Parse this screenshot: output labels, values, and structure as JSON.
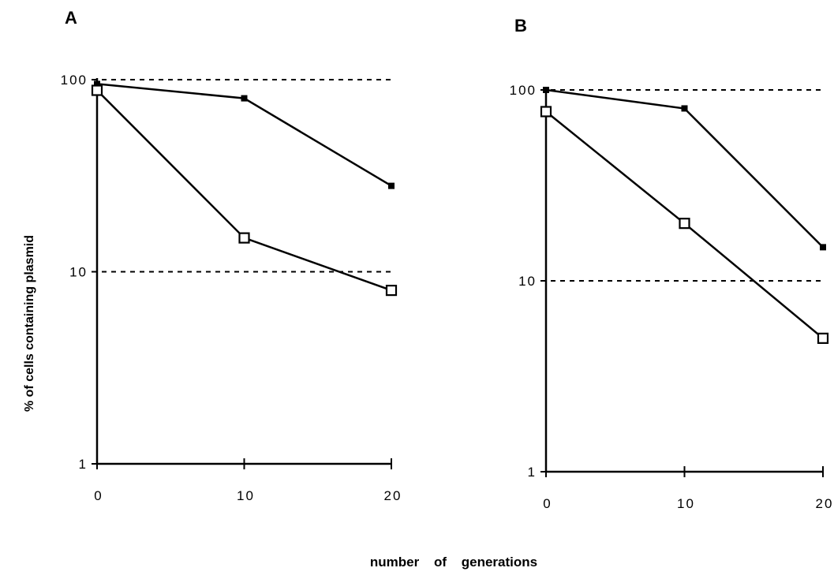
{
  "figure": {
    "ylabel": "% of cells containing plasmid",
    "xlabel": "number   of   generations"
  },
  "chart_data": [
    {
      "type": "line",
      "panel": "A",
      "y_scale": "log",
      "ylim": [
        1,
        100
      ],
      "xlim": [
        0,
        20
      ],
      "x_ticks": [
        "0",
        "10",
        "20"
      ],
      "y_ticks": [
        "1",
        "10",
        "100"
      ],
      "reference_lines": [
        100,
        10
      ],
      "series": [
        {
          "marker": "filled-square",
          "x": [
            0,
            10,
            20
          ],
          "y": [
            95,
            80,
            28
          ]
        },
        {
          "marker": "open-square",
          "x": [
            0,
            10,
            20
          ],
          "y": [
            88,
            15,
            8
          ]
        }
      ]
    },
    {
      "type": "line",
      "panel": "B",
      "y_scale": "log",
      "ylim": [
        1,
        100
      ],
      "xlim": [
        0,
        20
      ],
      "x_ticks": [
        "0",
        "10",
        "20"
      ],
      "y_ticks": [
        "1",
        "10",
        "100"
      ],
      "reference_lines": [
        100,
        10
      ],
      "series": [
        {
          "marker": "filled-square",
          "x": [
            0,
            10,
            20
          ],
          "y": [
            100,
            80,
            15
          ]
        },
        {
          "marker": "open-square",
          "x": [
            0,
            10,
            20
          ],
          "y": [
            77,
            20,
            5
          ]
        }
      ]
    }
  ]
}
